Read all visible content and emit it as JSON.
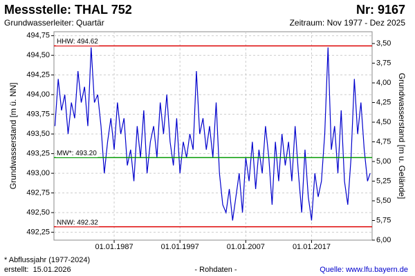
{
  "chart_data": {
    "type": "line",
    "title": "Messstelle: THAL 752",
    "number": "Nr: 9167",
    "subtitle": "Grundwasserleiter: Quartär",
    "period": "Zeitraum: Nov 1977 - Dez 2025",
    "y_label": "Grundwasserstand [m ü. NN]",
    "y2_label": "Grundwasserstand [m u. Gelände]",
    "footnote": "* Abflussjahr (1977-2024)",
    "created": "erstellt:  15.01.2026",
    "data_note": "- Rohdaten -",
    "source": "Quelle: www.lfu.bayern.de",
    "x": [
      1978,
      1978.5,
      1979,
      1979.5,
      1980,
      1980.5,
      1981,
      1981.5,
      1982,
      1982.5,
      1983,
      1983.5,
      1984,
      1984.5,
      1985,
      1985.5,
      1986,
      1986.5,
      1987,
      1987.5,
      1988,
      1988.5,
      1989,
      1989.5,
      1990,
      1990.5,
      1991,
      1991.5,
      1992,
      1992.5,
      1993,
      1993.5,
      1994,
      1994.5,
      1995,
      1995.5,
      1996,
      1996.5,
      1997,
      1997.5,
      1998,
      1998.5,
      1999,
      1999.5,
      2000,
      2000.5,
      2001,
      2001.5,
      2002,
      2002.5,
      2003,
      2003.5,
      2004,
      2004.5,
      2005,
      2005.5,
      2006,
      2006.5,
      2007,
      2007.5,
      2008,
      2008.5,
      2009,
      2009.5,
      2010,
      2010.5,
      2011,
      2011.5,
      2012,
      2012.5,
      2013,
      2013.5,
      2014,
      2014.5,
      2015,
      2015.5,
      2016,
      2016.5,
      2017,
      2017.5,
      2018,
      2018.5,
      2019,
      2019.5,
      2020,
      2020.5,
      2021,
      2021.5,
      2022,
      2022.5,
      2023,
      2023.5,
      2024,
      2024.5,
      2025,
      2025.5,
      2025.9
    ],
    "series": [
      {
        "color": "#0000cc",
        "values": [
          493.6,
          494.2,
          493.8,
          494.0,
          493.5,
          493.9,
          493.7,
          494.3,
          493.9,
          494.1,
          493.6,
          494.6,
          493.9,
          494.0,
          493.6,
          493.0,
          493.4,
          493.7,
          493.3,
          493.9,
          493.5,
          493.7,
          493.1,
          493.3,
          492.9,
          493.6,
          493.2,
          493.8,
          493.0,
          493.4,
          493.6,
          493.2,
          493.9,
          493.5,
          494.0,
          493.4,
          493.1,
          493.7,
          493.0,
          493.4,
          493.2,
          493.5,
          493.3,
          494.3,
          493.5,
          493.7,
          493.3,
          493.6,
          493.2,
          493.9,
          493.0,
          492.6,
          492.5,
          492.8,
          492.4,
          492.7,
          493.0,
          492.5,
          493.2,
          492.9,
          493.4,
          492.8,
          493.3,
          493.0,
          493.6,
          493.2,
          492.6,
          493.4,
          492.9,
          493.5,
          493.1,
          493.4,
          492.9,
          493.6,
          493.0,
          492.5,
          493.3,
          492.7,
          492.4,
          493.0,
          492.7,
          492.9,
          493.5,
          494.6,
          493.3,
          493.6,
          493.0,
          493.8,
          492.9,
          492.6,
          493.2,
          494.2,
          493.5,
          493.9,
          493.3,
          492.9,
          493.0
        ]
      }
    ],
    "reference_lines": [
      {
        "label": "HHW: 494.62",
        "value": 494.62,
        "color": "#dd0000"
      },
      {
        "label": "MW*: 493.20",
        "value": 493.2,
        "color": "#009900"
      },
      {
        "label": "NNW: 492.32",
        "value": 492.32,
        "color": "#dd0000"
      }
    ],
    "xlim": [
      1977.85,
      2026.2
    ],
    "xticks": [
      {
        "value": 1987,
        "label": "01.01.1987"
      },
      {
        "value": 1997,
        "label": "01.01.1997"
      },
      {
        "value": 2007,
        "label": "01.01.2007"
      },
      {
        "value": 2017,
        "label": "01.01.2017"
      }
    ],
    "ylim": [
      492.15,
      494.8
    ],
    "yticks": [
      {
        "value": 492.25,
        "label": "492,25"
      },
      {
        "value": 492.5,
        "label": "492,50"
      },
      {
        "value": 492.75,
        "label": "492,75"
      },
      {
        "value": 493,
        "label": "493,00"
      },
      {
        "value": 493.25,
        "label": "493,25"
      },
      {
        "value": 493.5,
        "label": "493,50"
      },
      {
        "value": 493.75,
        "label": "493,75"
      },
      {
        "value": 494,
        "label": "494,00"
      },
      {
        "value": 494.25,
        "label": "494,25"
      },
      {
        "value": 494.5,
        "label": "494,50"
      },
      {
        "value": 494.75,
        "label": "494,75"
      }
    ],
    "y2lim": [
      6.0,
      3.35
    ],
    "y2ticks": [
      {
        "value": 3.5,
        "label": "3,50"
      },
      {
        "value": 3.75,
        "label": "3,75"
      },
      {
        "value": 4,
        "label": "4,00"
      },
      {
        "value": 4.25,
        "label": "4,25"
      },
      {
        "value": 4.5,
        "label": "4,50"
      },
      {
        "value": 4.75,
        "label": "4,75"
      },
      {
        "value": 5,
        "label": "5,00"
      },
      {
        "value": 5.25,
        "label": "5,25"
      },
      {
        "value": 5.5,
        "label": "5,50"
      },
      {
        "value": 5.75,
        "label": "5,75"
      },
      {
        "value": 6,
        "label": "6,00"
      }
    ],
    "grid": true
  }
}
